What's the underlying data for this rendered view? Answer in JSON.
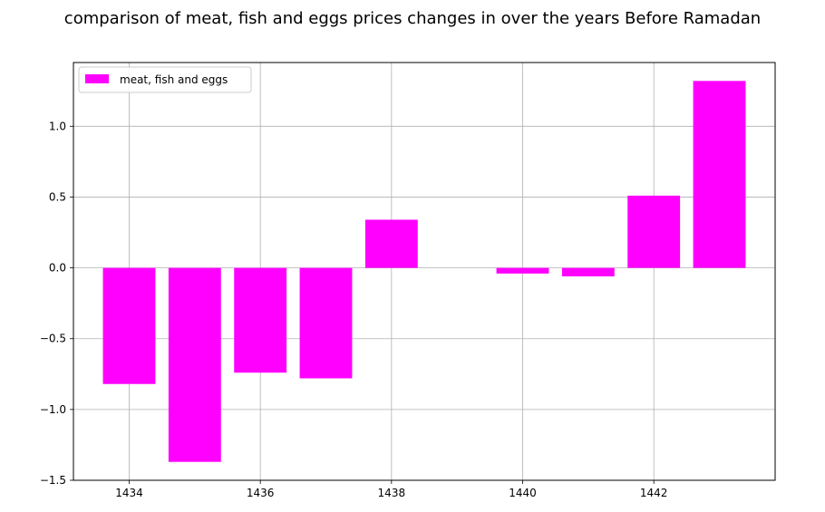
{
  "chart_data": {
    "type": "bar",
    "title": "comparison of meat, fish and eggs prices changes in over the years Before Ramadan",
    "xlabel": "",
    "ylabel": "",
    "x": [
      1434,
      1435,
      1436,
      1437,
      1438,
      1439,
      1440,
      1441,
      1442,
      1443
    ],
    "series": [
      {
        "name": "meat, fish and eggs",
        "values": [
          -0.82,
          -1.37,
          -0.74,
          -0.78,
          0.34,
          0.0,
          -0.04,
          -0.06,
          0.51,
          1.32
        ],
        "color": "#ff00ff"
      }
    ],
    "xlim": [
      1433.15,
      1443.85
    ],
    "ylim": [
      -1.5,
      1.45
    ],
    "xticks": [
      "1434",
      "1436",
      "1438",
      "1440",
      "1442"
    ],
    "yticks": [
      "−1.5",
      "−1.0",
      "−0.5",
      "0.0",
      "0.5",
      "1.0"
    ],
    "grid": true,
    "legend_position": "upper-left"
  }
}
